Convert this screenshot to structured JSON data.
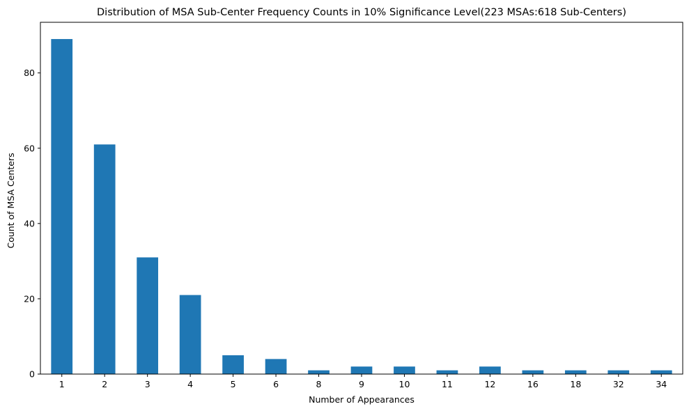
{
  "chart_data": {
    "type": "bar",
    "title": "Distribution of MSA Sub-Center Frequency Counts in 10% Significance Level(223 MSAs:618 Sub-Centers)",
    "xlabel": "Number of Appearances",
    "ylabel": "Count of MSA Centers",
    "categories": [
      "1",
      "2",
      "3",
      "4",
      "5",
      "6",
      "8",
      "9",
      "10",
      "11",
      "12",
      "16",
      "18",
      "32",
      "34"
    ],
    "values": [
      89,
      61,
      31,
      21,
      5,
      4,
      1,
      2,
      2,
      1,
      2,
      1,
      1,
      1,
      1
    ],
    "ylim": [
      0,
      93.45
    ],
    "yticks": [
      0,
      20,
      40,
      60,
      80
    ],
    "grid": false,
    "legend": "none",
    "bar_color": "#1f77b4"
  }
}
